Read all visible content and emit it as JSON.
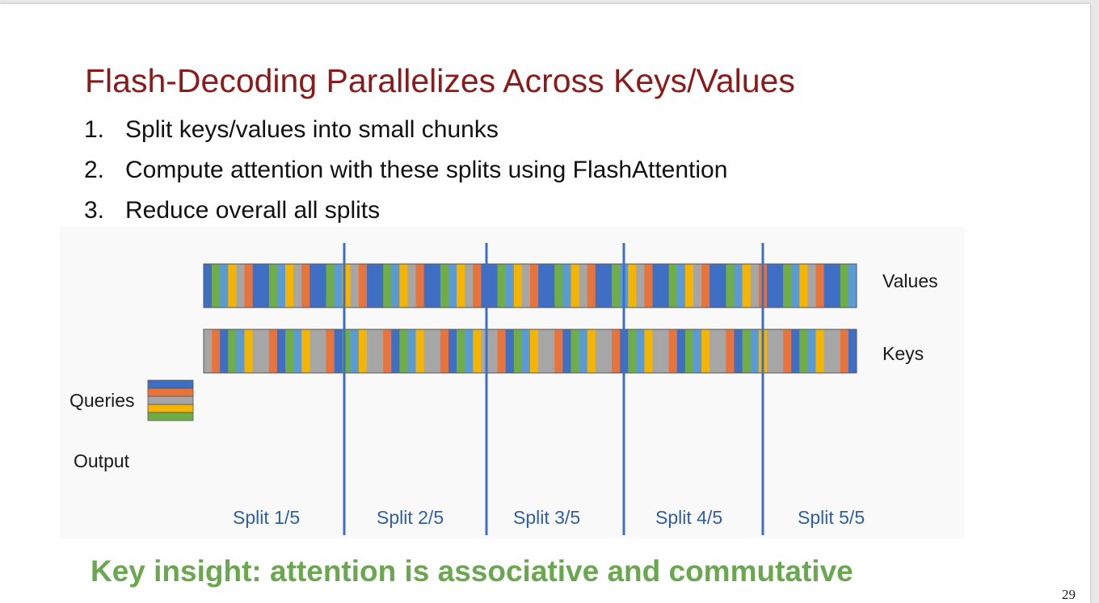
{
  "slide": {
    "title": "Flash-Decoding Parallelizes Across Keys/Values",
    "steps": [
      {
        "num": "1.",
        "text": "Split keys/values into small chunks"
      },
      {
        "num": "2.",
        "text": "Compute attention with these splits using FlashAttention"
      },
      {
        "num": "3.",
        "text": "Reduce overall all splits"
      }
    ],
    "insight": "Key insight: attention is associative and commutative",
    "page_number": "29"
  },
  "diagram": {
    "values_label": "Values",
    "keys_label": "Keys",
    "queries_label": "Queries",
    "output_label": "Output",
    "splits": [
      "Split 1/5",
      "Split 2/5",
      "Split 3/5",
      "Split 4/5",
      "Split 5/5"
    ],
    "palette": [
      "#3e6fc4",
      "#e8743b",
      "#a6a6a6",
      "#f4b400",
      "#5b9bd5",
      "#70ad47"
    ],
    "query_colors": [
      "#3e6fc4",
      "#e8743b",
      "#a6a6a6",
      "#f4b400",
      "#70ad47"
    ],
    "divider_color": "#3e6fc4"
  }
}
